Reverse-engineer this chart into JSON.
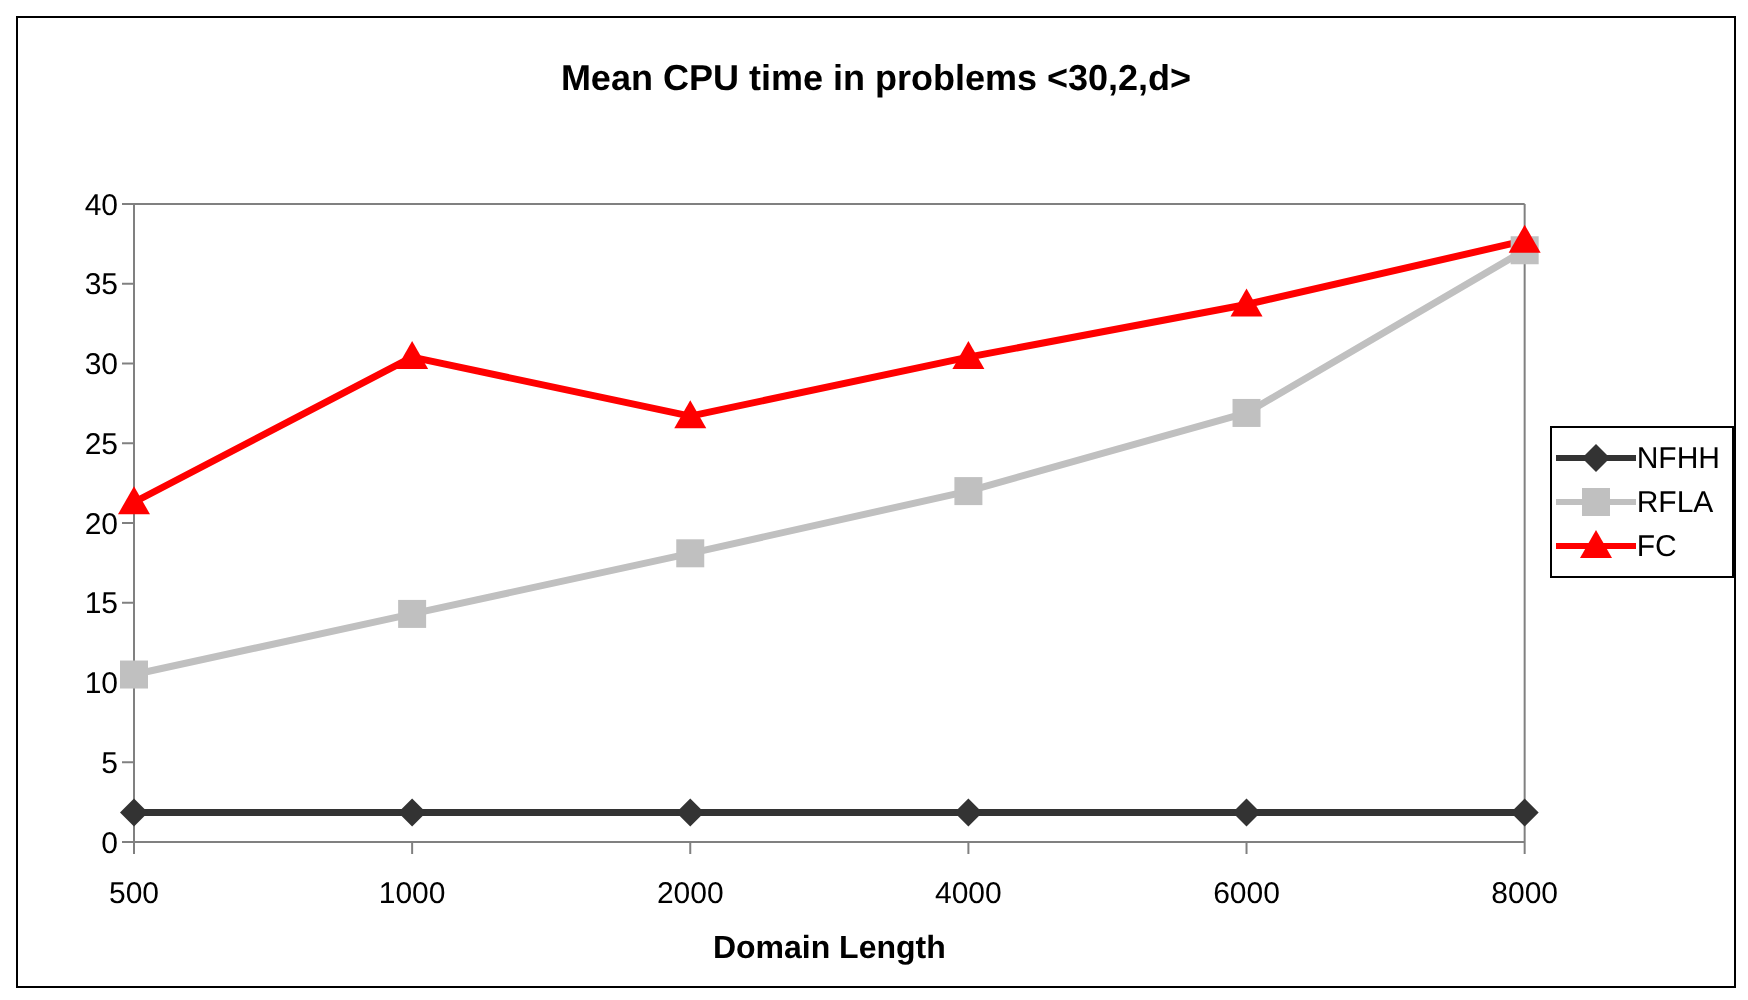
{
  "chart_data": {
    "type": "line",
    "title": "Mean CPU time in problems <30,2,d>",
    "xlabel": "Domain Length",
    "categories": [
      "500",
      "1000",
      "2000",
      "4000",
      "6000",
      "8000"
    ],
    "series": [
      {
        "name": "NFHH",
        "color": "#333333",
        "marker": "diamond",
        "values": [
          1.85,
          1.85,
          1.85,
          1.85,
          1.85,
          1.85
        ]
      },
      {
        "name": "RFLA",
        "color": "#c0c0c0",
        "marker": "square",
        "values": [
          10.5,
          14.3,
          18.1,
          22.0,
          26.9,
          37.1
        ]
      },
      {
        "name": "FC",
        "color": "#ff0000",
        "marker": "triangle",
        "values": [
          21.3,
          30.4,
          26.7,
          30.4,
          33.7,
          37.7
        ]
      }
    ],
    "ylim": [
      0,
      40
    ],
    "yticks": [
      0,
      5,
      10,
      15,
      20,
      25,
      30,
      35,
      40
    ],
    "grid": false,
    "legend": "right"
  }
}
